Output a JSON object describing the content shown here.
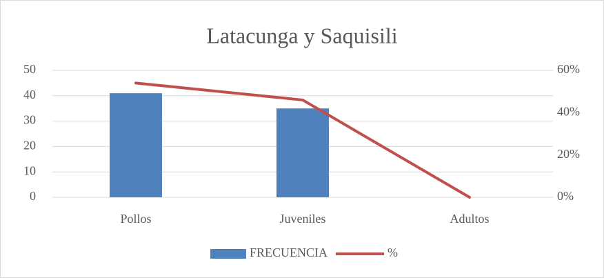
{
  "chart_data": {
    "type": "bar",
    "title": "Latacunga y Saquisili",
    "categories": [
      "Pollos",
      "Juveniles",
      "Adultos"
    ],
    "series": [
      {
        "name": "FRECUENCIA",
        "color": "#4f81bd",
        "values": [
          41,
          35,
          0
        ]
      },
      {
        "name": "%",
        "color": "#c0504d",
        "values": [
          54,
          46,
          0
        ],
        "axis": "y2",
        "type": "line"
      }
    ],
    "ylim": [
      0,
      50
    ],
    "yticks": [
      0,
      10,
      20,
      30,
      40,
      50
    ],
    "y2lim": [
      0,
      60
    ],
    "y2ticks": [
      {
        "value": 0,
        "label": "0%"
      },
      {
        "value": 20,
        "label": "20%"
      },
      {
        "value": 40,
        "label": "40%"
      },
      {
        "value": 60,
        "label": "60%"
      }
    ],
    "grid": true,
    "legend": "bottom"
  }
}
